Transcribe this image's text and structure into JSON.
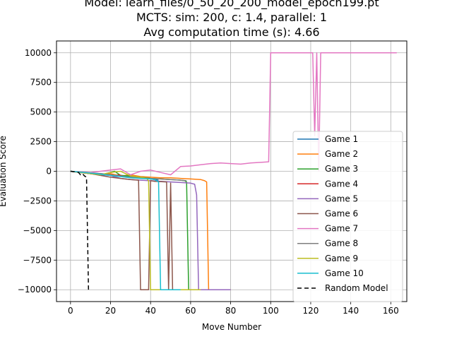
{
  "chart_data": {
    "type": "line",
    "title_lines": [
      "Model: learn_files/0_50_20_200_model_epoch199.pt",
      "MCTS: sim: 200, c: 1.4, parallel: 1",
      "Avg computation time (s): 4.66"
    ],
    "xlabel": "Move Number",
    "ylabel": "Evaluation Score",
    "xlim": [
      -7,
      168
    ],
    "ylim": [
      -11000,
      11000
    ],
    "xticks": [
      0,
      20,
      40,
      60,
      80,
      100,
      120,
      140,
      160
    ],
    "yticks": [
      -10000,
      -7500,
      -5000,
      -2500,
      0,
      2500,
      5000,
      7500,
      10000
    ],
    "grid": true,
    "legend_position": "lower right",
    "series": [
      {
        "name": "Game 1",
        "color": "#1f77b4",
        "dash": "",
        "x": [
          0,
          5,
          10,
          15,
          20,
          25,
          30,
          35,
          40,
          42,
          44
        ],
        "y": [
          0,
          -80,
          -150,
          -200,
          -250,
          -350,
          -450,
          -550,
          -650,
          -700,
          -750
        ]
      },
      {
        "name": "Game 2",
        "color": "#ff7f0e",
        "dash": "",
        "x": [
          0,
          5,
          10,
          15,
          20,
          25,
          30,
          35,
          40,
          45,
          50,
          55,
          60,
          65,
          67,
          68,
          69,
          70,
          80
        ],
        "y": [
          0,
          -100,
          -200,
          -300,
          -200,
          -400,
          -300,
          -450,
          -500,
          -550,
          -550,
          -600,
          -650,
          -700,
          -800,
          -900,
          -10000,
          -10000,
          -10000
        ]
      },
      {
        "name": "Game 3",
        "color": "#2ca02c",
        "dash": "",
        "x": [
          0,
          5,
          10,
          15,
          20,
          22,
          25,
          30,
          35,
          40,
          45,
          50,
          55,
          57,
          58,
          59,
          62
        ],
        "y": [
          0,
          -80,
          -200,
          -300,
          -100,
          0,
          -350,
          -400,
          -500,
          -600,
          -650,
          -700,
          -750,
          -800,
          -900,
          -10000,
          -10000
        ]
      },
      {
        "name": "Game 4",
        "color": "#d62728",
        "dash": "",
        "x": [
          0,
          5,
          10,
          15,
          20,
          22,
          24,
          26
        ],
        "y": [
          0,
          -100,
          -200,
          -250,
          -300,
          -500,
          -300,
          -400
        ]
      },
      {
        "name": "Game 5",
        "color": "#9467bd",
        "dash": "",
        "x": [
          0,
          5,
          10,
          15,
          20,
          25,
          30,
          35,
          40,
          45,
          50,
          55,
          60,
          62,
          63,
          64,
          65,
          67,
          80
        ],
        "y": [
          0,
          -100,
          -200,
          -300,
          -350,
          -600,
          -700,
          -750,
          -800,
          -850,
          -900,
          -950,
          -1000,
          -1100,
          -2000,
          -10000,
          -10000,
          -10000,
          -10000
        ]
      },
      {
        "name": "Game 6",
        "color": "#8c564b",
        "dash": "",
        "x": [
          0,
          5,
          10,
          15,
          20,
          25,
          30,
          34,
          35,
          36,
          37,
          38,
          39,
          40,
          42,
          48,
          49,
          50,
          51
        ],
        "y": [
          0,
          -100,
          -200,
          -350,
          -500,
          -600,
          -700,
          -750,
          -10000,
          -10000,
          -10000,
          -10000,
          -10000,
          -800,
          -850,
          -900,
          -10000,
          -1000,
          -10000
        ]
      },
      {
        "name": "Game 7",
        "color": "#e377c2",
        "dash": "",
        "x": [
          0,
          10,
          20,
          25,
          30,
          35,
          40,
          45,
          50,
          55,
          60,
          65,
          70,
          75,
          80,
          85,
          90,
          95,
          99,
          100,
          105,
          110,
          115,
          120,
          121,
          122,
          123,
          124,
          125,
          130,
          140,
          150,
          160,
          163
        ],
        "y": [
          0,
          -100,
          100,
          200,
          -300,
          0,
          100,
          -100,
          -300,
          400,
          450,
          550,
          650,
          700,
          650,
          600,
          700,
          750,
          800,
          10000,
          10000,
          10000,
          10000,
          10000,
          10000,
          3000,
          10000,
          0,
          10000,
          10000,
          10000,
          10000,
          10000,
          10000
        ]
      },
      {
        "name": "Game 8",
        "color": "#7f7f7f",
        "dash": "",
        "x": [
          0,
          5,
          10,
          15,
          20,
          25,
          30,
          35,
          40,
          45,
          50,
          55,
          58
        ],
        "y": [
          0,
          -80,
          -150,
          -200,
          -300,
          -400,
          -500,
          -550,
          -600,
          -650,
          -700,
          -750,
          -800
        ]
      },
      {
        "name": "Game 9",
        "color": "#bcbd22",
        "dash": "",
        "x": [
          0,
          5,
          10,
          15,
          20,
          25,
          30,
          35,
          38,
          39,
          40,
          42,
          50,
          60,
          65
        ],
        "y": [
          0,
          -100,
          -200,
          -300,
          -100,
          0,
          -400,
          -500,
          -600,
          -800,
          -10000,
          -10000,
          -10000,
          -10000,
          -10000
        ]
      },
      {
        "name": "Game 10",
        "color": "#17becf",
        "dash": "",
        "x": [
          0,
          5,
          10,
          15,
          20,
          25,
          30,
          35,
          40,
          42,
          43,
          44,
          45,
          46,
          50,
          55
        ],
        "y": [
          0,
          -80,
          -150,
          -250,
          -350,
          -450,
          -550,
          -600,
          -650,
          -700,
          -800,
          -900,
          -10000,
          -10000,
          -10000,
          -10000
        ]
      },
      {
        "name": "Random Model",
        "color": "#000000",
        "dash": "6,4",
        "x": [
          0,
          2,
          4,
          5,
          6,
          7,
          8,
          9
        ],
        "y": [
          0,
          -50,
          -100,
          -300,
          -200,
          -400,
          -500,
          -10000
        ]
      }
    ]
  }
}
